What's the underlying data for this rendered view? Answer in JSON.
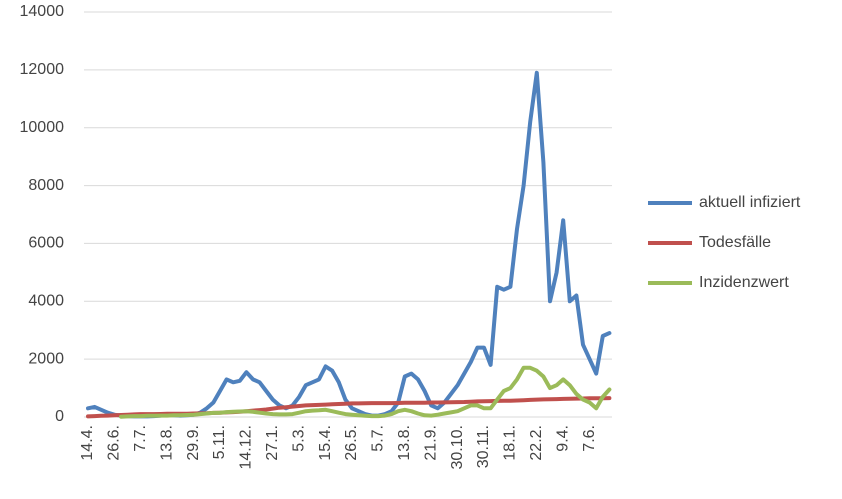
{
  "chart_data": {
    "type": "line",
    "categories": [
      "14.4.",
      null,
      null,
      null,
      "26.6.",
      null,
      null,
      null,
      "7.7.",
      null,
      null,
      null,
      "13.8.",
      null,
      null,
      null,
      "29.9.",
      null,
      null,
      null,
      "5.11.",
      null,
      null,
      null,
      "14.12.",
      null,
      null,
      null,
      "27.1.",
      null,
      null,
      null,
      "5.3.",
      null,
      null,
      null,
      "15.4.",
      null,
      null,
      null,
      "26.5.",
      null,
      null,
      null,
      "5.7.",
      null,
      null,
      null,
      "13.8.",
      null,
      null,
      null,
      "21.9.",
      null,
      null,
      null,
      "30.10.",
      null,
      null,
      null,
      "30.11.",
      null,
      null,
      null,
      "18.1.",
      null,
      null,
      null,
      "22.2.",
      null,
      null,
      null,
      "9.4.",
      null,
      null,
      null,
      "7.6.",
      null,
      null,
      null
    ],
    "series": [
      {
        "name": "aktuell infiziert",
        "color": "#4f81bd",
        "values": [
          300,
          350,
          250,
          150,
          80,
          50,
          30,
          20,
          20,
          20,
          30,
          50,
          80,
          60,
          50,
          60,
          80,
          150,
          300,
          500,
          900,
          1300,
          1200,
          1250,
          1550,
          1300,
          1200,
          900,
          600,
          400,
          300,
          400,
          700,
          1100,
          1200,
          1300,
          1750,
          1600,
          1200,
          600,
          300,
          200,
          100,
          50,
          50,
          100,
          200,
          500,
          1400,
          1500,
          1300,
          900,
          400,
          300,
          500,
          800,
          1100,
          1500,
          1900,
          2400,
          2400,
          1800,
          4500,
          4400,
          4500,
          6500,
          8000,
          10200,
          11900,
          8800,
          4000,
          5000,
          6800,
          4000,
          4200,
          2500,
          2000,
          1500,
          2800,
          2900
        ]
      },
      {
        "name": "Todesfälle",
        "color": "#c0504d",
        "values": [
          20,
          30,
          40,
          50,
          60,
          70,
          80,
          90,
          100,
          100,
          100,
          105,
          110,
          110,
          110,
          115,
          120,
          125,
          130,
          140,
          150,
          160,
          170,
          180,
          200,
          220,
          240,
          260,
          290,
          320,
          340,
          360,
          380,
          400,
          410,
          420,
          430,
          440,
          450,
          460,
          470,
          470,
          475,
          480,
          480,
          480,
          480,
          485,
          490,
          490,
          490,
          495,
          500,
          500,
          505,
          510,
          515,
          520,
          530,
          540,
          545,
          550,
          555,
          560,
          565,
          570,
          580,
          590,
          600,
          610,
          615,
          620,
          625,
          630,
          635,
          640,
          645,
          650,
          650,
          655
        ]
      },
      {
        "name": "Inzidenzwert",
        "color": "#9bbb59",
        "values": [
          null,
          null,
          null,
          null,
          null,
          10,
          20,
          30,
          30,
          40,
          40,
          50,
          50,
          60,
          60,
          70,
          80,
          100,
          120,
          140,
          150,
          170,
          180,
          190,
          200,
          180,
          150,
          120,
          100,
          90,
          90,
          100,
          150,
          200,
          220,
          230,
          250,
          200,
          150,
          100,
          80,
          60,
          40,
          30,
          30,
          50,
          100,
          200,
          250,
          200,
          120,
          60,
          50,
          80,
          120,
          160,
          200,
          300,
          400,
          400,
          300,
          300,
          600,
          900,
          1000,
          1300,
          1700,
          1700,
          1600,
          1400,
          1000,
          1100,
          1300,
          1100,
          800,
          600,
          500,
          300,
          700,
          950
        ]
      }
    ],
    "ylim": [
      0,
      14000
    ],
    "yticks": [
      0,
      2000,
      4000,
      6000,
      8000,
      10000,
      12000,
      14000
    ],
    "grid": true,
    "legend": "right"
  }
}
